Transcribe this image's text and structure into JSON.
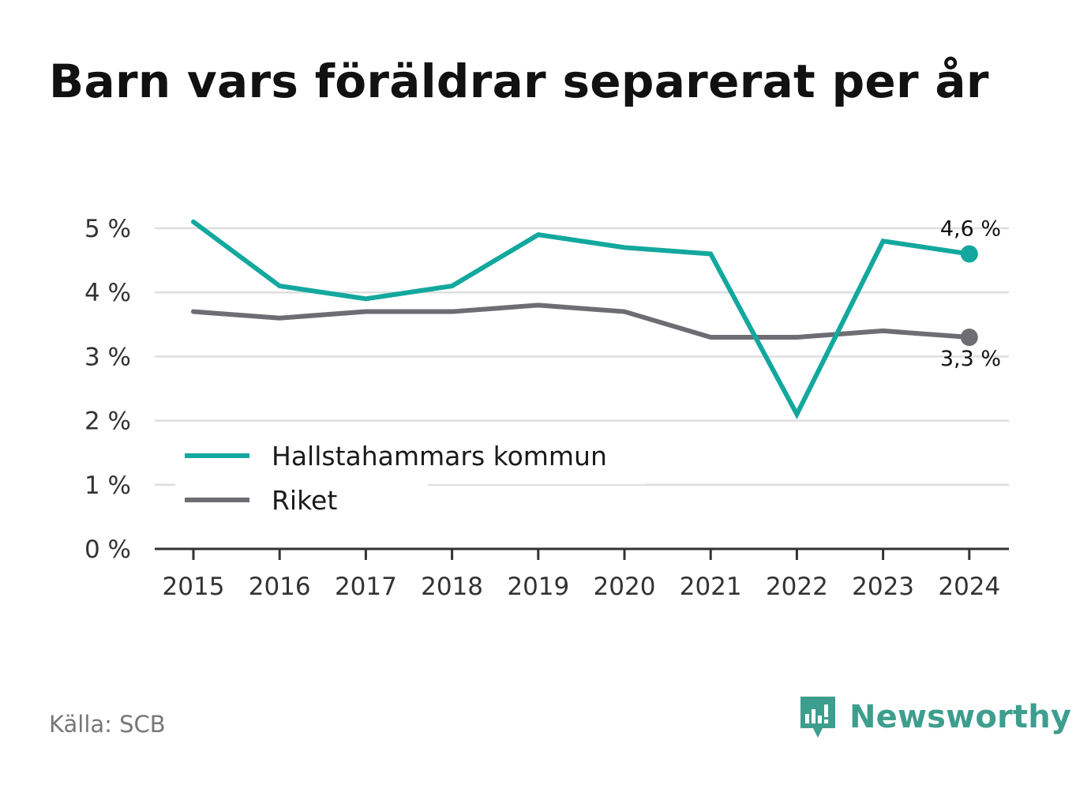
{
  "title": "Barn vars föräldrar separerat per år",
  "source": "Källa: SCB",
  "brand": {
    "name": "Newsworthy",
    "icon": "newsworthy-logo-icon",
    "color": "#3e9e8e"
  },
  "chart_data": {
    "type": "line",
    "title": "Barn vars föräldrar separerat per år",
    "xlabel": "",
    "ylabel": "",
    "x": [
      2015,
      2016,
      2017,
      2018,
      2019,
      2020,
      2021,
      2022,
      2023,
      2024
    ],
    "x_tick_labels": [
      "2015",
      "2016",
      "2017",
      "2018",
      "2019",
      "2020",
      "2021",
      "2022",
      "2023",
      "2024"
    ],
    "ylim": [
      0,
      5
    ],
    "y_ticks": [
      0,
      1,
      2,
      3,
      4,
      5
    ],
    "y_tick_labels": [
      "0 %",
      "1 %",
      "2 %",
      "3 %",
      "4 %",
      "5 %"
    ],
    "grid": true,
    "legend_position": "bottom-left",
    "series": [
      {
        "name": "Hallstahammars kommun",
        "color": "#13a89e",
        "values": [
          5.1,
          4.1,
          3.9,
          4.1,
          4.9,
          4.7,
          4.6,
          2.1,
          4.8,
          4.6
        ],
        "end_label": "4,6 %"
      },
      {
        "name": "Riket",
        "color": "#6d6d73",
        "values": [
          3.7,
          3.6,
          3.7,
          3.7,
          3.8,
          3.7,
          3.3,
          3.3,
          3.4,
          3.3
        ],
        "end_label": "3,3 %"
      }
    ]
  }
}
